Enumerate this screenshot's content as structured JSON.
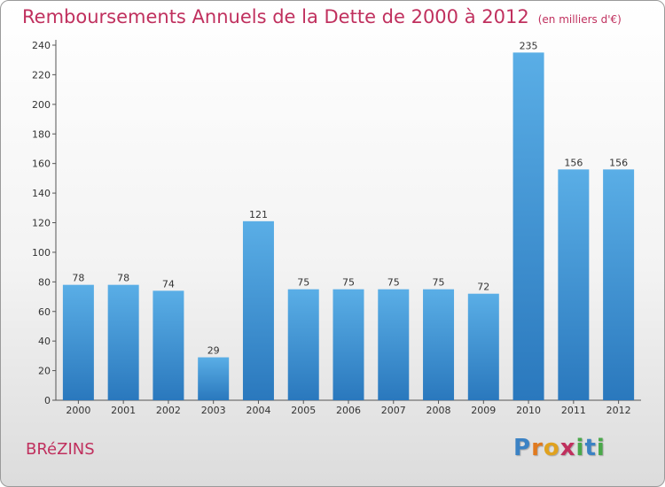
{
  "header": {
    "title": "Remboursements Annuels de la Dette de 2000 à 2012",
    "subtitle": "(en milliers d'€)"
  },
  "footer": {
    "place": "BRéZINS",
    "logo": [
      "P",
      "r",
      "o",
      "x",
      "i",
      "t",
      "i"
    ]
  },
  "colors": {
    "title": "#c0305e",
    "bar_light": "#5aaee6",
    "bar_dark": "#2a78bd",
    "logo": [
      "#3b82c4",
      "#e07a1f",
      "#e0a21f",
      "#c0305e",
      "#4aa84a",
      "#3b82c4",
      "#4aa84a"
    ]
  },
  "chart_data": {
    "type": "bar",
    "categories": [
      "2000",
      "2001",
      "2002",
      "2003",
      "2004",
      "2005",
      "2006",
      "2007",
      "2008",
      "2009",
      "2010",
      "2011",
      "2012"
    ],
    "values": [
      78,
      78,
      74,
      29,
      121,
      75,
      75,
      75,
      75,
      72,
      235,
      156,
      156
    ],
    "ylim": [
      0,
      240
    ],
    "yticks": [
      0,
      20,
      40,
      60,
      80,
      100,
      120,
      140,
      160,
      180,
      200,
      220,
      240
    ],
    "grid": false,
    "show_value_labels": true
  }
}
